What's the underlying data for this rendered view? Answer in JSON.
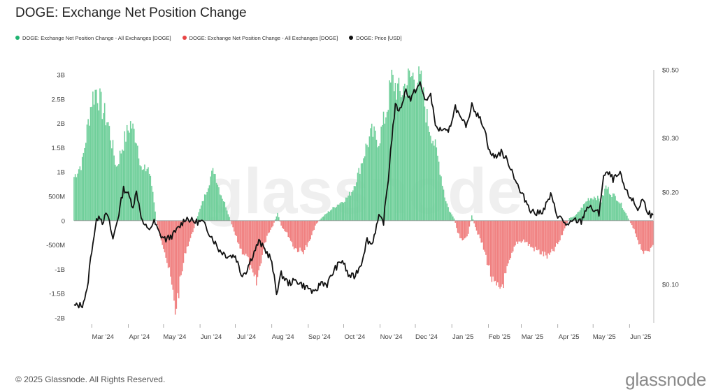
{
  "title": "DOGE: Exchange Net Position Change",
  "legend": [
    {
      "label": "DOGE: Exchange Net Position Change - All Exchanges [DOGE]",
      "color": "#1fb371"
    },
    {
      "label": "DOGE: Exchange Net Position Change - All Exchanges [DOGE]",
      "color": "#e84545"
    },
    {
      "label": "DOGE: Price [USD]",
      "color": "#111111"
    }
  ],
  "watermark": "glassnode",
  "footer": {
    "copyright": "© 2025 Glassnode. All Rights Reserved.",
    "logo": "glassnode"
  },
  "colors": {
    "positive": "#6fcf9a",
    "negative": "#f08080",
    "price": "#111111"
  },
  "chart_data": {
    "type": "bar",
    "title": "DOGE: Exchange Net Position Change",
    "x_axis": {
      "labels": [
        "Mar '24",
        "Apr '24",
        "May '24",
        "Jun '24",
        "Jul '24",
        "Aug '24",
        "Sep '24",
        "Oct '24",
        "Nov '24",
        "Dec '24",
        "Jan '25",
        "Feb '25",
        "Mar '25",
        "Apr '25",
        "May '25",
        "Jun '25"
      ],
      "range": [
        "2024-02-15",
        "2025-06-21"
      ]
    },
    "y_left": {
      "range": [
        -2.1,
        3.1
      ],
      "unit": "B",
      "ticks": [
        {
          "value": 3,
          "label": "3B"
        },
        {
          "value": 2.5,
          "label": "2.5B"
        },
        {
          "value": 2,
          "label": "2B"
        },
        {
          "value": 1.5,
          "label": "1.5B"
        },
        {
          "value": 1,
          "label": "1B"
        },
        {
          "value": 0.5,
          "label": "500M"
        },
        {
          "value": 0,
          "label": "0"
        },
        {
          "value": -0.5,
          "label": "-500M"
        },
        {
          "value": -1,
          "label": "-1B"
        },
        {
          "value": -1.5,
          "label": "-1.5B"
        },
        {
          "value": -2,
          "label": "-2B"
        }
      ]
    },
    "y_right": {
      "scale": "log",
      "range": [
        0.075,
        0.5
      ],
      "ticks": [
        {
          "value": 0.5,
          "label": "$0.50"
        },
        {
          "value": 0.3,
          "label": "$0.30"
        },
        {
          "value": 0.2,
          "label": "$0.20"
        },
        {
          "value": 0.1,
          "label": "$0.10"
        }
      ]
    },
    "net_position_keyframes": [
      [
        "2024-02-15",
        0.9
      ],
      [
        "2024-02-22",
        1.2
      ],
      [
        "2024-03-01",
        2.5
      ],
      [
        "2024-03-05",
        2.7
      ],
      [
        "2024-03-10",
        2.3
      ],
      [
        "2024-03-15",
        2.0
      ],
      [
        "2024-03-22",
        1.1
      ],
      [
        "2024-03-28",
        1.6
      ],
      [
        "2024-04-03",
        2.0
      ],
      [
        "2024-04-08",
        1.7
      ],
      [
        "2024-04-13",
        1.0
      ],
      [
        "2024-04-18",
        1.1
      ],
      [
        "2024-04-22",
        0.6
      ],
      [
        "2024-04-25",
        0.0
      ],
      [
        "2024-04-28",
        -0.3
      ],
      [
        "2024-05-02",
        -0.6
      ],
      [
        "2024-05-07",
        -1.2
      ],
      [
        "2024-05-11",
        -1.85
      ],
      [
        "2024-05-15",
        -1.3
      ],
      [
        "2024-05-20",
        -0.6
      ],
      [
        "2024-05-25",
        -0.3
      ],
      [
        "2024-05-30",
        0.1
      ],
      [
        "2024-06-05",
        0.5
      ],
      [
        "2024-06-10",
        0.9
      ],
      [
        "2024-06-13",
        1.05
      ],
      [
        "2024-06-18",
        0.6
      ],
      [
        "2024-06-23",
        0.3
      ],
      [
        "2024-06-27",
        0.0
      ],
      [
        "2024-07-01",
        -0.3
      ],
      [
        "2024-07-06",
        -0.6
      ],
      [
        "2024-07-11",
        -0.75
      ],
      [
        "2024-07-15",
        -1.1
      ],
      [
        "2024-07-19",
        -1.3
      ],
      [
        "2024-07-23",
        -0.8
      ],
      [
        "2024-07-28",
        -0.3
      ],
      [
        "2024-08-02",
        -0.1
      ],
      [
        "2024-08-06",
        0.15
      ],
      [
        "2024-08-09",
        -0.1
      ],
      [
        "2024-08-15",
        -0.3
      ],
      [
        "2024-08-20",
        -0.55
      ],
      [
        "2024-08-27",
        -0.65
      ],
      [
        "2024-09-02",
        -0.45
      ],
      [
        "2024-09-07",
        -0.1
      ],
      [
        "2024-09-12",
        0.05
      ],
      [
        "2024-09-19",
        0.2
      ],
      [
        "2024-09-27",
        0.35
      ],
      [
        "2024-10-03",
        0.45
      ],
      [
        "2024-10-08",
        0.6
      ],
      [
        "2024-10-14",
        1.0
      ],
      [
        "2024-10-20",
        1.5
      ],
      [
        "2024-10-25",
        1.8
      ],
      [
        "2024-10-31",
        1.65
      ],
      [
        "2024-11-06",
        2.2
      ],
      [
        "2024-11-11",
        2.9
      ],
      [
        "2024-11-18",
        2.6
      ],
      [
        "2024-11-25",
        2.9
      ],
      [
        "2024-12-01",
        3.0
      ],
      [
        "2024-12-06",
        2.8
      ],
      [
        "2024-12-11",
        2.1
      ],
      [
        "2024-12-16",
        1.7
      ],
      [
        "2024-12-21",
        1.2
      ],
      [
        "2024-12-26",
        0.5
      ],
      [
        "2024-12-30",
        0.2
      ],
      [
        "2025-01-03",
        0.05
      ],
      [
        "2025-01-06",
        -0.25
      ],
      [
        "2025-01-10",
        -0.45
      ],
      [
        "2025-01-15",
        -0.25
      ],
      [
        "2025-01-18",
        0.1
      ],
      [
        "2025-01-22",
        -0.2
      ],
      [
        "2025-01-27",
        -0.5
      ],
      [
        "2025-02-01",
        -0.9
      ],
      [
        "2025-02-05",
        -1.3
      ],
      [
        "2025-02-10",
        -1.45
      ],
      [
        "2025-02-15",
        -1.2
      ],
      [
        "2025-02-20",
        -0.8
      ],
      [
        "2025-02-25",
        -0.45
      ],
      [
        "2025-03-03",
        -0.4
      ],
      [
        "2025-03-10",
        -0.55
      ],
      [
        "2025-03-17",
        -0.65
      ],
      [
        "2025-03-24",
        -0.75
      ],
      [
        "2025-03-29",
        -0.6
      ],
      [
        "2025-04-03",
        -0.4
      ],
      [
        "2025-04-07",
        -0.15
      ],
      [
        "2025-04-11",
        0.05
      ],
      [
        "2025-04-16",
        0.1
      ],
      [
        "2025-04-21",
        0.25
      ],
      [
        "2025-04-27",
        0.45
      ],
      [
        "2025-05-03",
        0.5
      ],
      [
        "2025-05-08",
        0.4
      ],
      [
        "2025-05-12",
        0.7
      ],
      [
        "2025-05-17",
        0.55
      ],
      [
        "2025-05-22",
        0.45
      ],
      [
        "2025-05-27",
        0.25
      ],
      [
        "2025-06-01",
        0.0
      ],
      [
        "2025-06-05",
        -0.2
      ],
      [
        "2025-06-10",
        -0.5
      ],
      [
        "2025-06-14",
        -0.7
      ],
      [
        "2025-06-18",
        -0.6
      ],
      [
        "2025-06-21",
        -0.45
      ]
    ],
    "price_keyframes": [
      [
        "2024-02-15",
        0.085
      ],
      [
        "2024-02-22",
        0.086
      ],
      [
        "2024-02-26",
        0.095
      ],
      [
        "2024-03-01",
        0.13
      ],
      [
        "2024-03-05",
        0.16
      ],
      [
        "2024-03-07",
        0.17
      ],
      [
        "2024-03-10",
        0.16
      ],
      [
        "2024-03-14",
        0.17
      ],
      [
        "2024-03-19",
        0.14
      ],
      [
        "2024-03-24",
        0.17
      ],
      [
        "2024-03-28",
        0.205
      ],
      [
        "2024-03-31",
        0.2
      ],
      [
        "2024-04-05",
        0.18
      ],
      [
        "2024-04-08",
        0.2
      ],
      [
        "2024-04-13",
        0.16
      ],
      [
        "2024-04-18",
        0.15
      ],
      [
        "2024-04-23",
        0.16
      ],
      [
        "2024-04-28",
        0.145
      ],
      [
        "2024-05-03",
        0.14
      ],
      [
        "2024-05-09",
        0.145
      ],
      [
        "2024-05-15",
        0.155
      ],
      [
        "2024-05-20",
        0.165
      ],
      [
        "2024-05-27",
        0.16
      ],
      [
        "2024-06-03",
        0.16
      ],
      [
        "2024-06-10",
        0.145
      ],
      [
        "2024-06-17",
        0.13
      ],
      [
        "2024-06-24",
        0.124
      ],
      [
        "2024-07-01",
        0.124
      ],
      [
        "2024-07-06",
        0.108
      ],
      [
        "2024-07-10",
        0.11
      ],
      [
        "2024-07-16",
        0.125
      ],
      [
        "2024-07-21",
        0.138
      ],
      [
        "2024-07-26",
        0.13
      ],
      [
        "2024-07-31",
        0.122
      ],
      [
        "2024-08-05",
        0.094
      ],
      [
        "2024-08-09",
        0.108
      ],
      [
        "2024-08-15",
        0.101
      ],
      [
        "2024-08-22",
        0.103
      ],
      [
        "2024-08-28",
        0.099
      ],
      [
        "2024-09-02",
        0.097
      ],
      [
        "2024-09-06",
        0.093
      ],
      [
        "2024-09-12",
        0.102
      ],
      [
        "2024-09-17",
        0.1
      ],
      [
        "2024-09-24",
        0.113
      ],
      [
        "2024-09-30",
        0.12
      ],
      [
        "2024-10-05",
        0.107
      ],
      [
        "2024-10-10",
        0.106
      ],
      [
        "2024-10-16",
        0.117
      ],
      [
        "2024-10-21",
        0.14
      ],
      [
        "2024-10-25",
        0.135
      ],
      [
        "2024-10-31",
        0.165
      ],
      [
        "2024-11-04",
        0.16
      ],
      [
        "2024-11-08",
        0.22
      ],
      [
        "2024-11-11",
        0.3
      ],
      [
        "2024-11-14",
        0.38
      ],
      [
        "2024-11-18",
        0.37
      ],
      [
        "2024-11-23",
        0.43
      ],
      [
        "2024-11-27",
        0.4
      ],
      [
        "2024-12-01",
        0.43
      ],
      [
        "2024-12-05",
        0.45
      ],
      [
        "2024-12-09",
        0.4
      ],
      [
        "2024-12-14",
        0.41
      ],
      [
        "2024-12-19",
        0.32
      ],
      [
        "2024-12-24",
        0.32
      ],
      [
        "2024-12-29",
        0.31
      ],
      [
        "2025-01-04",
        0.38
      ],
      [
        "2025-01-09",
        0.34
      ],
      [
        "2025-01-14",
        0.33
      ],
      [
        "2025-01-18",
        0.39
      ],
      [
        "2025-01-22",
        0.36
      ],
      [
        "2025-01-28",
        0.33
      ],
      [
        "2025-02-02",
        0.27
      ],
      [
        "2025-02-06",
        0.26
      ],
      [
        "2025-02-12",
        0.27
      ],
      [
        "2025-02-18",
        0.25
      ],
      [
        "2025-02-24",
        0.22
      ],
      [
        "2025-02-28",
        0.2
      ],
      [
        "2025-03-04",
        0.19
      ],
      [
        "2025-03-09",
        0.175
      ],
      [
        "2025-03-14",
        0.17
      ],
      [
        "2025-03-20",
        0.175
      ],
      [
        "2025-03-26",
        0.195
      ],
      [
        "2025-03-31",
        0.17
      ],
      [
        "2025-04-06",
        0.16
      ],
      [
        "2025-04-10",
        0.155
      ],
      [
        "2025-04-15",
        0.162
      ],
      [
        "2025-04-21",
        0.16
      ],
      [
        "2025-04-26",
        0.18
      ],
      [
        "2025-05-01",
        0.175
      ],
      [
        "2025-05-06",
        0.17
      ],
      [
        "2025-05-10",
        0.225
      ],
      [
        "2025-05-14",
        0.23
      ],
      [
        "2025-05-18",
        0.22
      ],
      [
        "2025-05-24",
        0.228
      ],
      [
        "2025-05-29",
        0.2
      ],
      [
        "2025-06-03",
        0.19
      ],
      [
        "2025-06-08",
        0.175
      ],
      [
        "2025-06-12",
        0.19
      ],
      [
        "2025-06-16",
        0.175
      ],
      [
        "2025-06-21",
        0.165
      ]
    ]
  }
}
